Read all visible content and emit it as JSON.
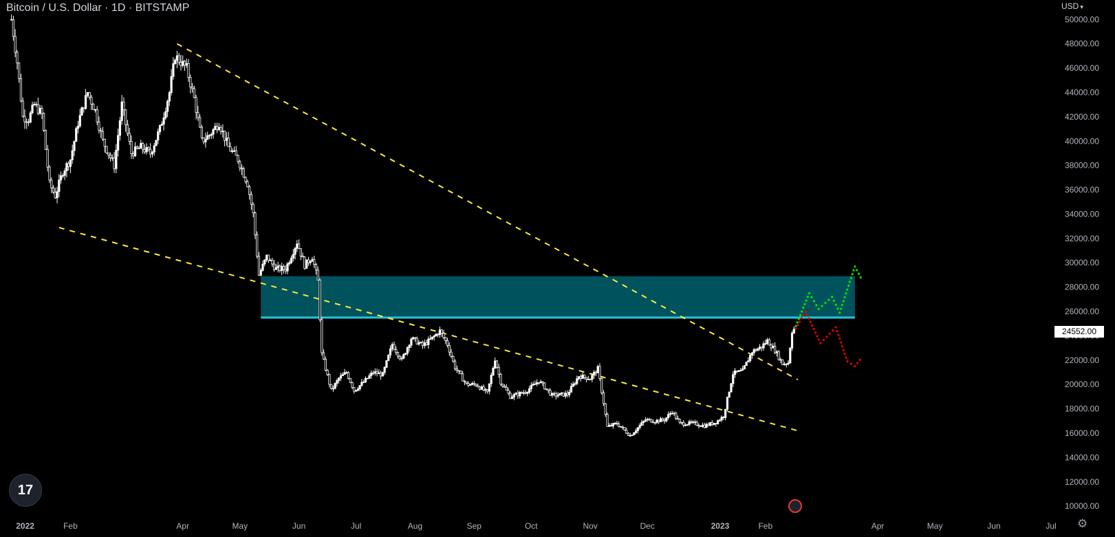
{
  "header": {
    "title": "Bitcoin / U.S. Dollar · 1D · BITSTAMP",
    "currency": "USD"
  },
  "last_price": "24552.00",
  "colors": {
    "background": "#000000",
    "candle": "#ffffff",
    "trendline": "#ffeb3b",
    "zone_fill": "#00535d",
    "zone_line": "#26c6da",
    "bull_path": "#00e600",
    "bear_path": "#e60000"
  },
  "chart_data": {
    "type": "candlestick",
    "x_labels": [
      "2022",
      "Feb",
      "Apr",
      "May",
      "Jun",
      "Jul",
      "Aug",
      "Sep",
      "Oct",
      "Nov",
      "Dec",
      "2023",
      "Feb",
      "Apr",
      "May",
      "Jun",
      "Jul"
    ],
    "y_ticks": [
      "50000.00",
      "48000.00",
      "46000.00",
      "44000.00",
      "42000.00",
      "40000.00",
      "38000.00",
      "36000.00",
      "34000.00",
      "32000.00",
      "30000.00",
      "28000.00",
      "26000.00",
      "24000.00",
      "22000.00",
      "20000.00",
      "18000.00",
      "16000.00",
      "14000.00",
      "12000.00",
      "10000.00"
    ],
    "ylim": [
      9500,
      51600
    ],
    "xlim": [
      "2021-12-26",
      "2023-07-01"
    ],
    "grid": false,
    "price_series": {
      "name": "BTCUSD",
      "points": [
        [
          "2022-01-01",
          50000
        ],
        [
          "2022-01-04",
          46500
        ],
        [
          "2022-01-07",
          42000
        ],
        [
          "2022-01-10",
          41800
        ],
        [
          "2022-01-13",
          43000
        ],
        [
          "2022-01-17",
          42200
        ],
        [
          "2022-01-21",
          36500
        ],
        [
          "2022-01-24",
          35500
        ],
        [
          "2022-01-28",
          37500
        ],
        [
          "2022-02-01",
          38500
        ],
        [
          "2022-02-05",
          41500
        ],
        [
          "2022-02-10",
          44000
        ],
        [
          "2022-02-14",
          42500
        ],
        [
          "2022-02-18",
          40000
        ],
        [
          "2022-02-24",
          38000
        ],
        [
          "2022-02-28",
          43000
        ],
        [
          "2022-03-05",
          39000
        ],
        [
          "2022-03-10",
          39500
        ],
        [
          "2022-03-15",
          39000
        ],
        [
          "2022-03-20",
          41000
        ],
        [
          "2022-03-25",
          44000
        ],
        [
          "2022-03-28",
          47000
        ],
        [
          "2022-03-31",
          46500
        ],
        [
          "2022-04-03",
          46000
        ],
        [
          "2022-04-07",
          43500
        ],
        [
          "2022-04-11",
          40000
        ],
        [
          "2022-04-15",
          40500
        ],
        [
          "2022-04-20",
          41500
        ],
        [
          "2022-04-25",
          39500
        ],
        [
          "2022-04-30",
          38500
        ],
        [
          "2022-05-05",
          36500
        ],
        [
          "2022-05-08",
          34000
        ],
        [
          "2022-05-11",
          29000
        ],
        [
          "2022-05-15",
          30500
        ],
        [
          "2022-05-20",
          29500
        ],
        [
          "2022-05-25",
          29500
        ],
        [
          "2022-05-31",
          31700
        ],
        [
          "2022-06-04",
          29800
        ],
        [
          "2022-06-08",
          30500
        ],
        [
          "2022-06-11",
          28500
        ],
        [
          "2022-06-13",
          22500
        ],
        [
          "2022-06-18",
          19500
        ],
        [
          "2022-06-22",
          20500
        ],
        [
          "2022-06-26",
          21000
        ],
        [
          "2022-06-30",
          19500
        ],
        [
          "2022-07-05",
          20200
        ],
        [
          "2022-07-10",
          21000
        ],
        [
          "2022-07-15",
          20800
        ],
        [
          "2022-07-20",
          23300
        ],
        [
          "2022-07-25",
          22000
        ],
        [
          "2022-07-30",
          23800
        ],
        [
          "2022-08-05",
          23200
        ],
        [
          "2022-08-10",
          23800
        ],
        [
          "2022-08-14",
          24400
        ],
        [
          "2022-08-18",
          23300
        ],
        [
          "2022-08-22",
          21400
        ],
        [
          "2022-08-28",
          20000
        ],
        [
          "2022-09-02",
          20000
        ],
        [
          "2022-09-08",
          19300
        ],
        [
          "2022-09-12",
          22100
        ],
        [
          "2022-09-15",
          20200
        ],
        [
          "2022-09-20",
          19000
        ],
        [
          "2022-09-28",
          19400
        ],
        [
          "2022-10-05",
          20300
        ],
        [
          "2022-10-12",
          19100
        ],
        [
          "2022-10-20",
          19200
        ],
        [
          "2022-10-26",
          20700
        ],
        [
          "2022-11-01",
          20500
        ],
        [
          "2022-11-05",
          21300
        ],
        [
          "2022-11-08",
          18500
        ],
        [
          "2022-11-10",
          16500
        ],
        [
          "2022-11-15",
          16800
        ],
        [
          "2022-11-22",
          15800
        ],
        [
          "2022-11-30",
          17100
        ],
        [
          "2022-12-05",
          17000
        ],
        [
          "2022-12-10",
          17100
        ],
        [
          "2022-12-14",
          17800
        ],
        [
          "2022-12-18",
          16800
        ],
        [
          "2022-12-25",
          16800
        ],
        [
          "2022-12-31",
          16600
        ],
        [
          "2023-01-06",
          16900
        ],
        [
          "2023-01-10",
          17400
        ],
        [
          "2023-01-12",
          18800
        ],
        [
          "2023-01-15",
          20900
        ],
        [
          "2023-01-20",
          21100
        ],
        [
          "2023-01-25",
          22700
        ],
        [
          "2023-01-30",
          23100
        ],
        [
          "2023-02-02",
          23600
        ],
        [
          "2023-02-06",
          22800
        ],
        [
          "2023-02-10",
          21700
        ],
        [
          "2023-02-13",
          21800
        ],
        [
          "2023-02-15",
          24400
        ],
        [
          "2023-02-16",
          24552
        ]
      ]
    },
    "trendlines": [
      {
        "from": [
          "2022-03-29",
          48000
        ],
        "to": [
          "2023-02-18",
          20400
        ]
      },
      {
        "from": [
          "2022-01-26",
          32900
        ],
        "to": [
          "2023-02-18",
          16200
        ]
      }
    ],
    "zone": {
      "from": "2022-05-12",
      "to": "2023-03-20",
      "low": 25500,
      "high": 28900
    },
    "projections": [
      {
        "name": "bullish",
        "points": [
          [
            "2023-02-17",
            24800
          ],
          [
            "2023-02-24",
            27500
          ],
          [
            "2023-03-01",
            26200
          ],
          [
            "2023-03-08",
            27200
          ],
          [
            "2023-03-12",
            25900
          ],
          [
            "2023-03-20",
            29700
          ],
          [
            "2023-03-24",
            28500
          ]
        ]
      },
      {
        "name": "bearish",
        "points": [
          [
            "2023-02-17",
            24600
          ],
          [
            "2023-02-22",
            26000
          ],
          [
            "2023-03-02",
            23400
          ],
          [
            "2023-03-10",
            24700
          ],
          [
            "2023-03-16",
            21900
          ],
          [
            "2023-03-20",
            21500
          ],
          [
            "2023-03-24",
            22300
          ]
        ]
      }
    ]
  }
}
